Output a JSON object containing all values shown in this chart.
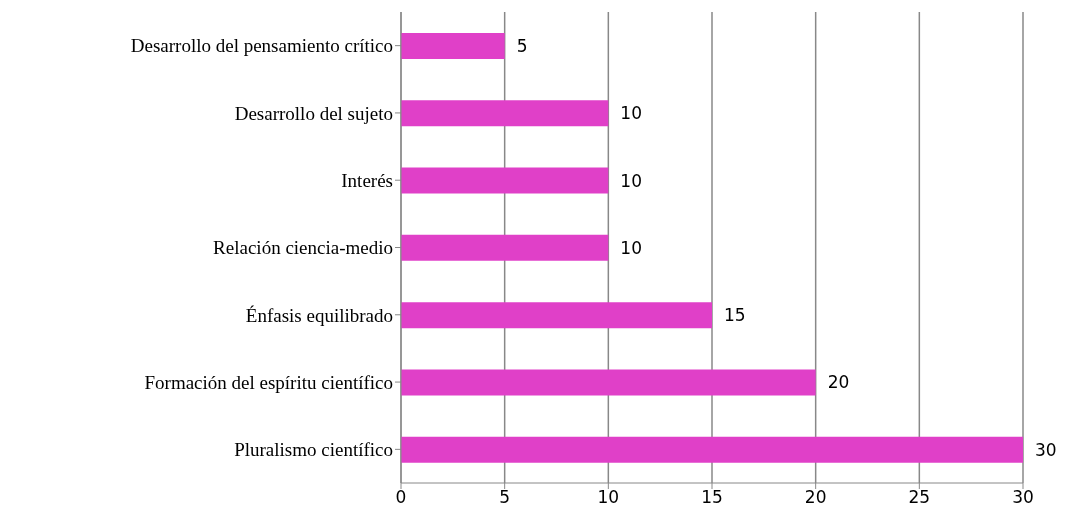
{
  "chart_data": {
    "type": "bar",
    "orientation": "horizontal",
    "categories": [
      "Desarrollo del pensamiento crítico",
      "Desarrollo del sujeto",
      "Interés",
      "Relación ciencia-medio",
      "Énfasis equilibrado",
      "Formación del espíritu científico",
      "Pluralismo científico"
    ],
    "values": [
      5,
      10,
      10,
      10,
      15,
      20,
      30
    ],
    "color": "#e040c8",
    "xlim": [
      0,
      30
    ],
    "xticks": [
      0,
      5,
      10,
      15,
      20,
      25,
      30
    ],
    "grid": "x",
    "data_labels": true
  }
}
